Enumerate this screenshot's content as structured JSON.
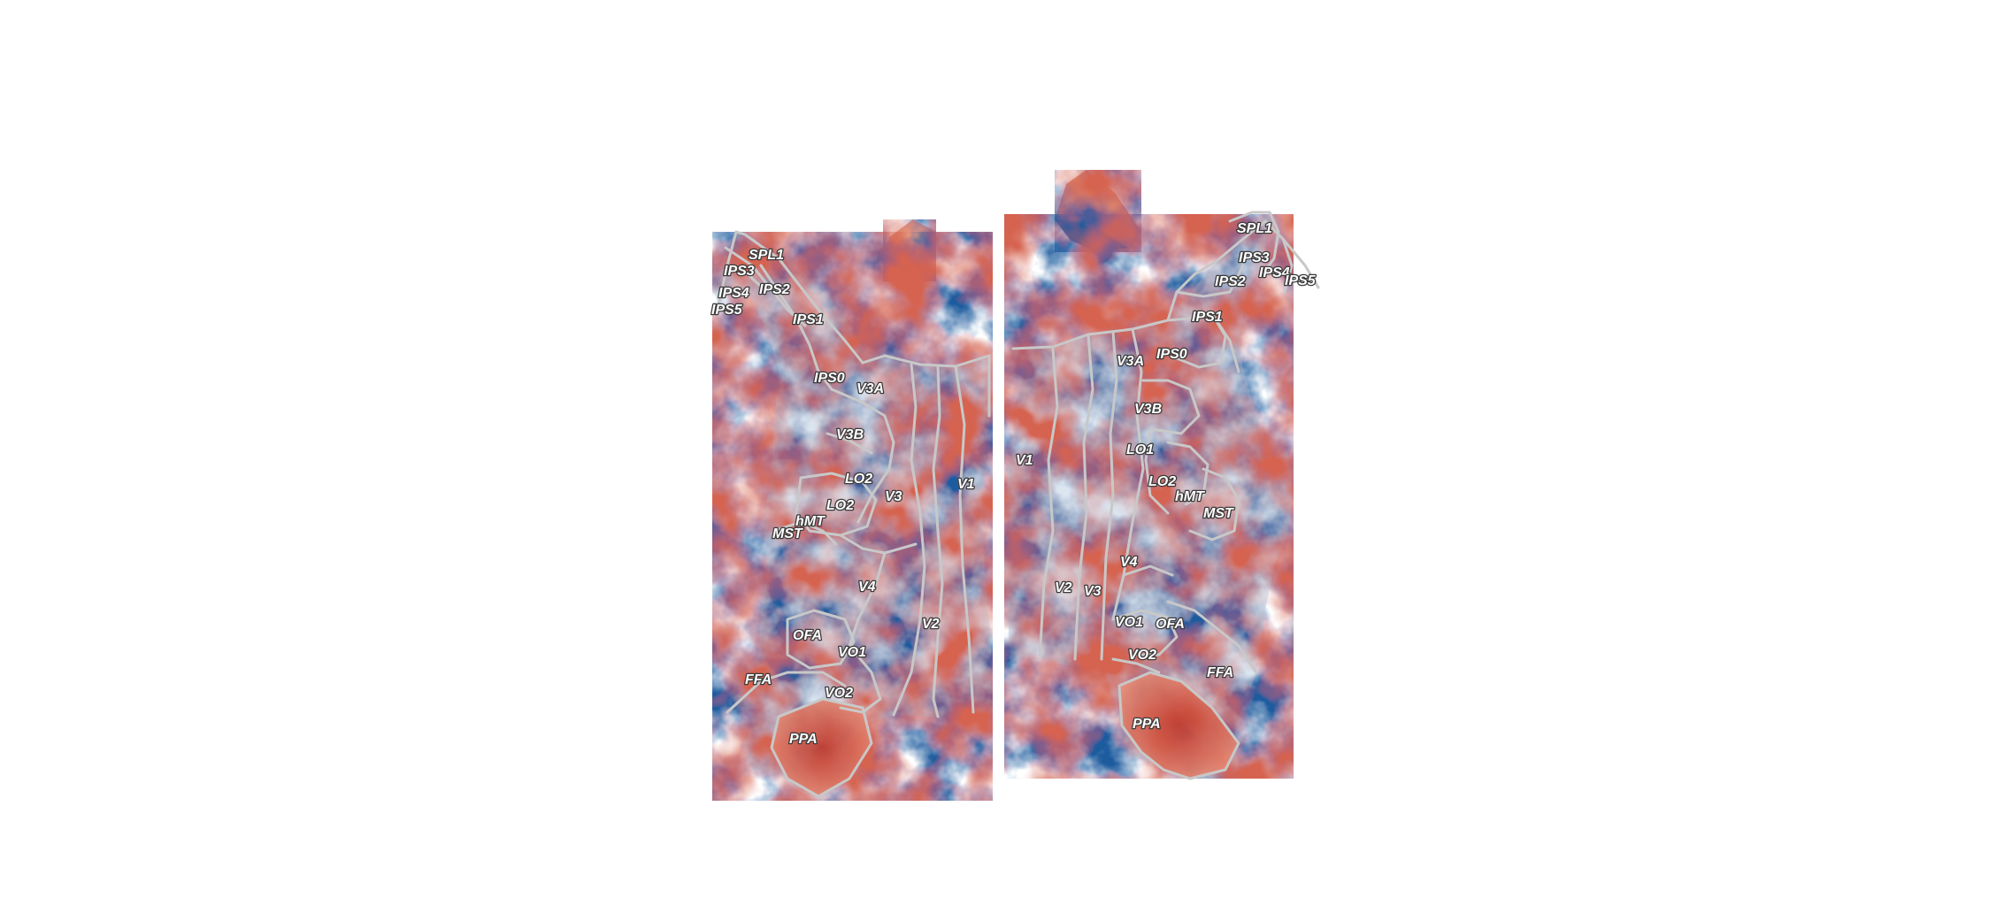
{
  "figure": {
    "colormap": {
      "negative": "#08306b",
      "neutral": "#f7f7f7",
      "positive": "#b2182b"
    },
    "boundary_color": "#c8c8c8",
    "label_text_color": "#ffffff",
    "label_outline_color": "#3a3a3a"
  },
  "left_hemisphere": {
    "rois": [
      {
        "id": "spl1",
        "label": "SPL1"
      },
      {
        "id": "ips3",
        "label": "IPS3"
      },
      {
        "id": "ips4",
        "label": "IPS4"
      },
      {
        "id": "ips5",
        "label": "IPS5"
      },
      {
        "id": "ips2",
        "label": "IPS2"
      },
      {
        "id": "ips1",
        "label": "IPS1"
      },
      {
        "id": "ips0",
        "label": "IPS0"
      },
      {
        "id": "v3a",
        "label": "V3A"
      },
      {
        "id": "v3b",
        "label": "V3B"
      },
      {
        "id": "lo2a",
        "label": "LO2"
      },
      {
        "id": "lo2b",
        "label": "LO2"
      },
      {
        "id": "v3",
        "label": "V3"
      },
      {
        "id": "v1",
        "label": "V1"
      },
      {
        "id": "hmt",
        "label": "hMT"
      },
      {
        "id": "mst",
        "label": "MST"
      },
      {
        "id": "v4",
        "label": "V4"
      },
      {
        "id": "ofa",
        "label": "OFA"
      },
      {
        "id": "v2",
        "label": "V2"
      },
      {
        "id": "vo1",
        "label": "VO1"
      },
      {
        "id": "ffa",
        "label": "FFA"
      },
      {
        "id": "vo2",
        "label": "VO2"
      },
      {
        "id": "ppa",
        "label": "PPA"
      }
    ]
  },
  "right_hemisphere": {
    "rois": [
      {
        "id": "spl1",
        "label": "SPL1"
      },
      {
        "id": "ips3",
        "label": "IPS3"
      },
      {
        "id": "ips4",
        "label": "IPS4"
      },
      {
        "id": "ips5",
        "label": "IPS5"
      },
      {
        "id": "ips2",
        "label": "IPS2"
      },
      {
        "id": "ips1",
        "label": "IPS1"
      },
      {
        "id": "v3a",
        "label": "V3A"
      },
      {
        "id": "ips0",
        "label": "IPS0"
      },
      {
        "id": "v3b",
        "label": "V3B"
      },
      {
        "id": "v1",
        "label": "V1"
      },
      {
        "id": "lo1",
        "label": "LO1"
      },
      {
        "id": "lo2",
        "label": "LO2"
      },
      {
        "id": "hmt",
        "label": "hMT"
      },
      {
        "id": "mst",
        "label": "MST"
      },
      {
        "id": "v4",
        "label": "V4"
      },
      {
        "id": "v2",
        "label": "V2"
      },
      {
        "id": "v3",
        "label": "V3"
      },
      {
        "id": "vo1",
        "label": "VO1"
      },
      {
        "id": "ofa",
        "label": "OFA"
      },
      {
        "id": "vo2",
        "label": "VO2"
      },
      {
        "id": "ffa",
        "label": "FFA"
      },
      {
        "id": "ppa",
        "label": "PPA"
      }
    ]
  }
}
